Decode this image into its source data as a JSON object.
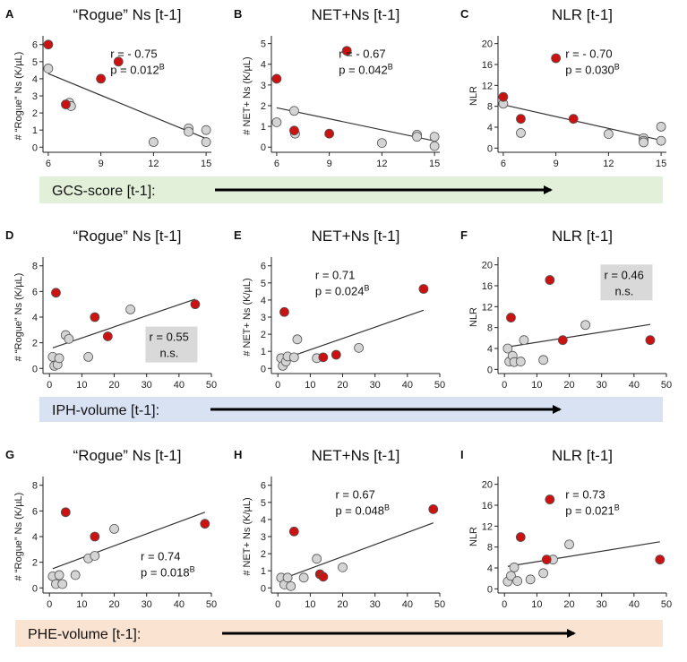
{
  "colors": {
    "red": "#cc1111",
    "grey": "#d4d4d4",
    "band_gcs": "#e3f0d9",
    "band_iph": "#d8e2f3",
    "band_phe": "#fbe3d2",
    "stat_box": "#d9d9d9"
  },
  "rows": [
    {
      "band_label": "GCS-score [t-1]:",
      "band_color_key": "band_gcs"
    },
    {
      "band_label": "IPH-volume [t-1]:",
      "band_color_key": "band_iph"
    },
    {
      "band_label": "PHE-volume [t-1]:",
      "band_color_key": "band_phe"
    }
  ],
  "chart_data": [
    {
      "label": "A",
      "type": "scatter",
      "title": "“Rogue” Ns [t-1]",
      "ylabel": "# “Rogue” Ns (K/µL)",
      "xlim": [
        5.7,
        15.3
      ],
      "ylim": [
        -0.3,
        6.3
      ],
      "xticks": [
        6,
        9,
        12,
        15
      ],
      "yticks": [
        0,
        1,
        2,
        3,
        4,
        5,
        6
      ],
      "r_text": "r = - 0.75",
      "p_text": "p = 0.012",
      "p_sup": "B",
      "stat_boxed": false,
      "fit": [
        [
          6,
          4.3
        ],
        [
          15,
          0.5
        ]
      ],
      "points": [
        {
          "x": 6,
          "y": 6,
          "c": "red"
        },
        {
          "x": 6,
          "y": 4.6,
          "c": "grey"
        },
        {
          "x": 7,
          "y": 2.5,
          "c": "red"
        },
        {
          "x": 7.2,
          "y": 2.6,
          "c": "grey"
        },
        {
          "x": 7.3,
          "y": 2.4,
          "c": "grey"
        },
        {
          "x": 9,
          "y": 4,
          "c": "red"
        },
        {
          "x": 10,
          "y": 5,
          "c": "red"
        },
        {
          "x": 12,
          "y": 0.3,
          "c": "grey"
        },
        {
          "x": 14,
          "y": 1.1,
          "c": "grey"
        },
        {
          "x": 14,
          "y": 0.9,
          "c": "grey"
        },
        {
          "x": 15,
          "y": 1,
          "c": "grey"
        },
        {
          "x": 15,
          "y": 0.3,
          "c": "grey"
        }
      ]
    },
    {
      "label": "B",
      "type": "scatter",
      "title": "NET+Ns [t-1]",
      "ylabel": "# NET+ Ns (K/µL)",
      "xlim": [
        5.7,
        15.3
      ],
      "ylim": [
        -0.25,
        5.2
      ],
      "xticks": [
        6,
        9,
        12,
        15
      ],
      "yticks": [
        0,
        1,
        2,
        3,
        4,
        5
      ],
      "r_text": "r = - 0.67",
      "p_text": "p = 0.042",
      "p_sup": "B",
      "stat_boxed": false,
      "fit": [
        [
          6,
          1.9
        ],
        [
          15,
          0.3
        ]
      ],
      "points": [
        {
          "x": 6,
          "y": 3.3,
          "c": "red"
        },
        {
          "x": 6,
          "y": 1.2,
          "c": "grey"
        },
        {
          "x": 7,
          "y": 1.75,
          "c": "grey"
        },
        {
          "x": 7,
          "y": 0.8,
          "c": "red"
        },
        {
          "x": 7.05,
          "y": 0.65,
          "c": "grey"
        },
        {
          "x": 9,
          "y": 0.65,
          "c": "red"
        },
        {
          "x": 10,
          "y": 4.65,
          "c": "red"
        },
        {
          "x": 12,
          "y": 0.2,
          "c": "grey"
        },
        {
          "x": 14,
          "y": 0.6,
          "c": "grey"
        },
        {
          "x": 14,
          "y": 0.5,
          "c": "grey"
        },
        {
          "x": 15,
          "y": 0.5,
          "c": "grey"
        },
        {
          "x": 15,
          "y": 0.05,
          "c": "grey"
        }
      ]
    },
    {
      "label": "C",
      "type": "scatter",
      "title": "NLR [t-1]",
      "ylabel": "NLR",
      "xlim": [
        5.7,
        15.3
      ],
      "ylim": [
        -0.8,
        20.8
      ],
      "xticks": [
        6,
        9,
        12,
        15
      ],
      "yticks": [
        0,
        4,
        8,
        12,
        16,
        20
      ],
      "r_text": "r = - 0.70",
      "p_text": "p = 0.030",
      "p_sup": "B",
      "stat_boxed": false,
      "fit": [
        [
          6,
          8.3
        ],
        [
          15,
          1.5
        ]
      ],
      "points": [
        {
          "x": 6,
          "y": 9.8,
          "c": "red"
        },
        {
          "x": 6,
          "y": 8.5,
          "c": "grey"
        },
        {
          "x": 7,
          "y": 5.6,
          "c": "red"
        },
        {
          "x": 7,
          "y": 2.9,
          "c": "grey"
        },
        {
          "x": 9,
          "y": 17.2,
          "c": "red"
        },
        {
          "x": 10,
          "y": 5.6,
          "c": "red"
        },
        {
          "x": 12,
          "y": 2.7,
          "c": "grey"
        },
        {
          "x": 14,
          "y": 1.9,
          "c": "grey"
        },
        {
          "x": 14,
          "y": 1.4,
          "c": "grey"
        },
        {
          "x": 14,
          "y": 1.1,
          "c": "grey"
        },
        {
          "x": 15,
          "y": 4.1,
          "c": "grey"
        },
        {
          "x": 15,
          "y": 1.4,
          "c": "grey"
        }
      ]
    },
    {
      "label": "D",
      "type": "scatter",
      "title": "“Rogue” Ns [t-1]",
      "ylabel": "# “Rogue” Ns (K/µL)",
      "xlim": [
        -2,
        50
      ],
      "ylim": [
        -0.4,
        8.4
      ],
      "xticks": [
        0,
        10,
        20,
        30,
        40,
        50
      ],
      "yticks": [
        0,
        2,
        4,
        6,
        8
      ],
      "r_text": "r = 0.55",
      "p_text": "n.s.",
      "p_sup": "",
      "stat_boxed": true,
      "fit": [
        [
          1,
          1.6
        ],
        [
          45,
          5.4
        ]
      ],
      "points": [
        {
          "x": 1,
          "y": 0.9,
          "c": "grey"
        },
        {
          "x": 1.5,
          "y": 0.2,
          "c": "grey"
        },
        {
          "x": 2,
          "y": 5.9,
          "c": "red"
        },
        {
          "x": 2.5,
          "y": 0.3,
          "c": "grey"
        },
        {
          "x": 3,
          "y": 0.8,
          "c": "grey"
        },
        {
          "x": 5,
          "y": 2.6,
          "c": "grey"
        },
        {
          "x": 6,
          "y": 2.3,
          "c": "grey"
        },
        {
          "x": 12,
          "y": 0.9,
          "c": "grey"
        },
        {
          "x": 14,
          "y": 4,
          "c": "red"
        },
        {
          "x": 18,
          "y": 2.5,
          "c": "red"
        },
        {
          "x": 25,
          "y": 4.6,
          "c": "grey"
        },
        {
          "x": 45,
          "y": 5,
          "c": "red"
        }
      ]
    },
    {
      "label": "E",
      "type": "scatter",
      "title": "NET+Ns [t-1]",
      "ylabel": "# NET+ Ns (K/µL)",
      "xlim": [
        -2,
        50
      ],
      "ylim": [
        -0.3,
        6.3
      ],
      "xticks": [
        0,
        10,
        20,
        30,
        40,
        50
      ],
      "yticks": [
        0,
        1,
        2,
        3,
        4,
        5,
        6
      ],
      "r_text": "r = 0.71",
      "p_text": "p = 0.024",
      "p_sup": "B",
      "stat_boxed": false,
      "fit": [
        [
          1,
          0.5
        ],
        [
          45,
          3.4
        ]
      ],
      "points": [
        {
          "x": 1,
          "y": 0.6,
          "c": "grey"
        },
        {
          "x": 1.5,
          "y": 0.15,
          "c": "grey"
        },
        {
          "x": 2,
          "y": 3.3,
          "c": "red"
        },
        {
          "x": 2.5,
          "y": 0.4,
          "c": "grey"
        },
        {
          "x": 3,
          "y": 0.7,
          "c": "grey"
        },
        {
          "x": 5,
          "y": 0.65,
          "c": "grey"
        },
        {
          "x": 6,
          "y": 1.7,
          "c": "grey"
        },
        {
          "x": 12,
          "y": 0.6,
          "c": "grey"
        },
        {
          "x": 14,
          "y": 0.65,
          "c": "red"
        },
        {
          "x": 18,
          "y": 0.8,
          "c": "red"
        },
        {
          "x": 25,
          "y": 1.2,
          "c": "grey"
        },
        {
          "x": 45,
          "y": 4.65,
          "c": "red"
        }
      ]
    },
    {
      "label": "F",
      "type": "scatter",
      "title": "NLR [t-1]",
      "ylabel": "NLR",
      "xlim": [
        -2,
        50
      ],
      "ylim": [
        -0.8,
        20.8
      ],
      "xticks": [
        0,
        10,
        20,
        30,
        40,
        50
      ],
      "yticks": [
        0,
        4,
        8,
        12,
        16,
        20
      ],
      "r_text": "r = 0.46",
      "p_text": "n.s.",
      "p_sup": "",
      "stat_boxed": true,
      "fit": [
        [
          1,
          4.3
        ],
        [
          45,
          8.6
        ]
      ],
      "points": [
        {
          "x": 1,
          "y": 4,
          "c": "grey"
        },
        {
          "x": 1.5,
          "y": 1.5,
          "c": "grey"
        },
        {
          "x": 2,
          "y": 9.9,
          "c": "red"
        },
        {
          "x": 2.5,
          "y": 2.6,
          "c": "grey"
        },
        {
          "x": 3,
          "y": 1.4,
          "c": "grey"
        },
        {
          "x": 5,
          "y": 1.5,
          "c": "grey"
        },
        {
          "x": 6,
          "y": 5.6,
          "c": "grey"
        },
        {
          "x": 12,
          "y": 1.8,
          "c": "grey"
        },
        {
          "x": 14,
          "y": 17.1,
          "c": "red"
        },
        {
          "x": 18,
          "y": 5.6,
          "c": "red"
        },
        {
          "x": 25,
          "y": 8.5,
          "c": "grey"
        },
        {
          "x": 45,
          "y": 5.6,
          "c": "red"
        }
      ]
    },
    {
      "label": "G",
      "type": "scatter",
      "title": "“Rogue” Ns [t-1]",
      "ylabel": "# “Rogue” Ns (K/µL)",
      "xlim": [
        -2,
        50
      ],
      "ylim": [
        -0.4,
        8.4
      ],
      "xticks": [
        0,
        10,
        20,
        30,
        40,
        50
      ],
      "yticks": [
        0,
        2,
        4,
        6,
        8
      ],
      "r_text": "r = 0.74",
      "p_text": "p = 0.018",
      "p_sup": "B",
      "stat_boxed": false,
      "fit": [
        [
          1,
          1.5
        ],
        [
          48,
          5.9
        ]
      ],
      "points": [
        {
          "x": 1,
          "y": 0.9,
          "c": "grey"
        },
        {
          "x": 2,
          "y": 0.3,
          "c": "grey"
        },
        {
          "x": 3,
          "y": 1,
          "c": "grey"
        },
        {
          "x": 4,
          "y": 0.3,
          "c": "grey"
        },
        {
          "x": 5,
          "y": 5.9,
          "c": "red"
        },
        {
          "x": 8,
          "y": 1,
          "c": "grey"
        },
        {
          "x": 12,
          "y": 2.3,
          "c": "grey"
        },
        {
          "x": 14,
          "y": 2.5,
          "c": "grey"
        },
        {
          "x": 14,
          "y": 4,
          "c": "red"
        },
        {
          "x": 20,
          "y": 4.6,
          "c": "grey"
        },
        {
          "x": 48,
          "y": 5,
          "c": "red"
        }
      ]
    },
    {
      "label": "H",
      "type": "scatter",
      "title": "NET+Ns [t-1]",
      "ylabel": "# NET+ Ns (K/µL)",
      "xlim": [
        -2,
        50
      ],
      "ylim": [
        -0.3,
        6.3
      ],
      "xticks": [
        0,
        10,
        20,
        30,
        40,
        50
      ],
      "yticks": [
        0,
        1,
        2,
        3,
        4,
        5,
        6
      ],
      "r_text": "r = 0.67",
      "p_text": "p = 0.048",
      "p_sup": "B",
      "stat_boxed": false,
      "fit": [
        [
          1,
          0.5
        ],
        [
          48,
          3.8
        ]
      ],
      "points": [
        {
          "x": 1,
          "y": 0.6,
          "c": "grey"
        },
        {
          "x": 2,
          "y": 0.2,
          "c": "grey"
        },
        {
          "x": 3,
          "y": 0.6,
          "c": "grey"
        },
        {
          "x": 4,
          "y": 0.1,
          "c": "grey"
        },
        {
          "x": 5,
          "y": 3.3,
          "c": "red"
        },
        {
          "x": 8,
          "y": 0.6,
          "c": "grey"
        },
        {
          "x": 12,
          "y": 1.7,
          "c": "grey"
        },
        {
          "x": 13,
          "y": 0.8,
          "c": "red"
        },
        {
          "x": 14,
          "y": 0.65,
          "c": "red"
        },
        {
          "x": 20,
          "y": 1.2,
          "c": "grey"
        },
        {
          "x": 48,
          "y": 4.6,
          "c": "red"
        }
      ]
    },
    {
      "label": "I",
      "type": "scatter",
      "title": "NLR [t-1]",
      "ylabel": "NLR",
      "xlim": [
        -2,
        50
      ],
      "ylim": [
        -0.8,
        20.8
      ],
      "xticks": [
        0,
        10,
        20,
        30,
        40,
        50
      ],
      "yticks": [
        0,
        4,
        8,
        12,
        16,
        20
      ],
      "r_text": "r = 0.73",
      "p_text": "p = 0.021",
      "p_sup": "B",
      "stat_boxed": false,
      "fit": [
        [
          1,
          4.3
        ],
        [
          48,
          9
        ]
      ],
      "points": [
        {
          "x": 1,
          "y": 1.4,
          "c": "grey"
        },
        {
          "x": 2,
          "y": 2.5,
          "c": "grey"
        },
        {
          "x": 3,
          "y": 4.1,
          "c": "grey"
        },
        {
          "x": 4,
          "y": 1.5,
          "c": "grey"
        },
        {
          "x": 5,
          "y": 9.9,
          "c": "red"
        },
        {
          "x": 8,
          "y": 1.8,
          "c": "grey"
        },
        {
          "x": 12,
          "y": 3,
          "c": "grey"
        },
        {
          "x": 13,
          "y": 5.6,
          "c": "red"
        },
        {
          "x": 14,
          "y": 17.1,
          "c": "red"
        },
        {
          "x": 15,
          "y": 5.6,
          "c": "grey"
        },
        {
          "x": 20,
          "y": 8.5,
          "c": "grey"
        },
        {
          "x": 48,
          "y": 5.6,
          "c": "red"
        }
      ]
    }
  ]
}
